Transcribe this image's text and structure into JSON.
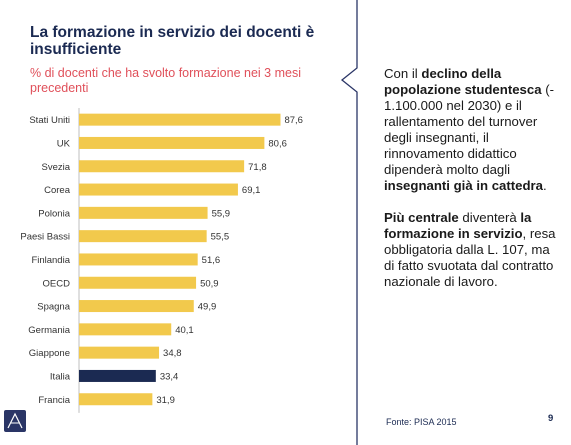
{
  "header": {
    "title": "La formazione in servizio dei docenti è insufficiente",
    "subtitle": "% di docenti che ha svolto formazione nei 3 mesi precedenti"
  },
  "chart_data": {
    "type": "bar",
    "orientation": "horizontal",
    "title": "",
    "xlabel": "",
    "ylabel": "",
    "xlim": [
      0,
      100
    ],
    "x_ticks": [
      "0",
      "20",
      "40",
      "60",
      "80",
      "100"
    ],
    "categories": [
      "Stati Uniti",
      "UK",
      "Svezia",
      "Corea",
      "Polonia",
      "Paesi Bassi",
      "Finlandia",
      "OECD",
      "Spagna",
      "Germania",
      "Giappone",
      "Italia",
      "Francia"
    ],
    "values": [
      87.6,
      80.6,
      71.8,
      69.1,
      55.9,
      55.5,
      51.6,
      50.9,
      49.9,
      40.1,
      34.8,
      33.4,
      31.9
    ],
    "value_labels": [
      "87,6",
      "80,6",
      "71,8",
      "69,1",
      "55,9",
      "55,5",
      "51,6",
      "50,9",
      "49,9",
      "40,1",
      "34,8",
      "33,4",
      "31,9"
    ],
    "highlight_category": "Italia",
    "bar_color": "#f2c94c",
    "highlight_color": "#1b2a52"
  },
  "text_panel": {
    "para1": [
      {
        "text": "Con il ",
        "bold": false
      },
      {
        "text": "declino della popolazione studentesca",
        "bold": true
      },
      {
        "text": " (- 1.100.000 nel 2030) e il rallentamento del turnover degli insegnanti, il rinnovamento didattico dipenderà molto dagli ",
        "bold": false
      },
      {
        "text": "insegnanti già in cattedra",
        "bold": true
      },
      {
        "text": ".",
        "bold": false
      }
    ],
    "para2": [
      {
        "text": "Più centrale",
        "bold": true
      },
      {
        "text": " diventerà ",
        "bold": false
      },
      {
        "text": "la formazione in servizio",
        "bold": true
      },
      {
        "text": ", resa obbligatoria dalla L. 107, ma di fatto svuotata dal contratto nazionale di lavoro.",
        "bold": false
      }
    ]
  },
  "footer": {
    "source": "Fonte: PISA 2015",
    "page_number": "9"
  },
  "colors": {
    "title": "#1b2a52",
    "subtitle": "#e0505a",
    "divider": "#2a3566"
  }
}
